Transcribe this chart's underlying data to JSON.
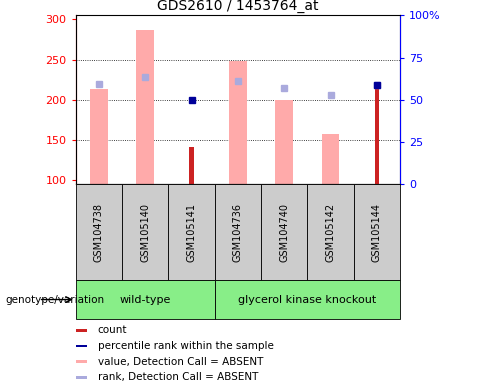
{
  "title": "GDS2610 / 1453764_at",
  "samples": [
    "GSM104738",
    "GSM105140",
    "GSM105141",
    "GSM104736",
    "GSM104740",
    "GSM105142",
    "GSM105144"
  ],
  "ylim_left": [
    95,
    305
  ],
  "ylim_right": [
    0,
    100
  ],
  "yticks_left": [
    100,
    150,
    200,
    250,
    300
  ],
  "yticks_right": [
    0,
    25,
    50,
    75,
    100
  ],
  "yticklabels_right": [
    "0",
    "25",
    "50",
    "75",
    "100%"
  ],
  "grid_values": [
    150,
    200,
    250
  ],
  "bar_color_dark_red": "#cc2222",
  "bar_color_light_pink": "#ffaaaa",
  "dot_color_dark_blue": "#000099",
  "dot_color_light_blue": "#aaaadd",
  "group_color_light_green": "#88ee88",
  "bg_color": "#cccccc",
  "count_bars": {
    "GSM104738": null,
    "GSM105140": null,
    "GSM105141": 142,
    "GSM104736": null,
    "GSM104740": null,
    "GSM105142": null,
    "GSM105144": 213
  },
  "value_absent_bars": {
    "GSM104738": 213,
    "GSM105140": 287,
    "GSM105141": null,
    "GSM104736": 248,
    "GSM104740": 200,
    "GSM105142": 157,
    "GSM105144": null
  },
  "percentile_rank_dots": {
    "GSM104738": null,
    "GSM105140": null,
    "GSM105141": 200,
    "GSM104736": null,
    "GSM104740": null,
    "GSM105142": null,
    "GSM105144": 218
  },
  "rank_absent_dots": {
    "GSM104738": 220,
    "GSM105140": 228,
    "GSM105141": null,
    "GSM104736": 224,
    "GSM104740": 215,
    "GSM105142": 206,
    "GSM105144": 218
  },
  "legend_items": [
    {
      "color": "#cc2222",
      "label": "count"
    },
    {
      "color": "#000099",
      "label": "percentile rank within the sample"
    },
    {
      "color": "#ffaaaa",
      "label": "value, Detection Call = ABSENT"
    },
    {
      "color": "#aaaadd",
      "label": "rank, Detection Call = ABSENT"
    }
  ],
  "wt_samples": 3,
  "gk_samples": 4
}
